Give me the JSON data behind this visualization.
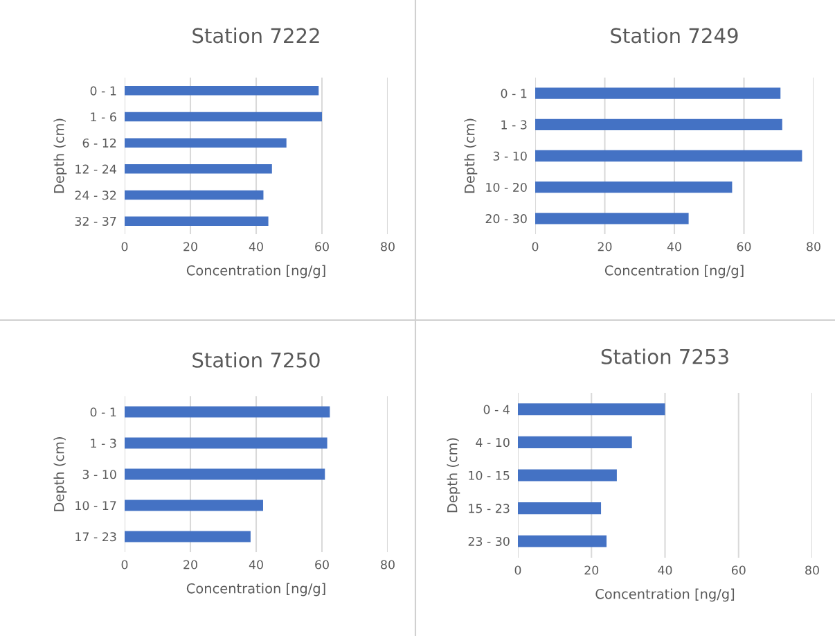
{
  "chart_data": [
    {
      "type": "bar",
      "orientation": "horizontal",
      "title": "Station 7222",
      "xlabel": "Concentration [ng/g]",
      "ylabel": "Depth (cm)",
      "categories": [
        "0 - 1",
        "1 - 6",
        "6 - 12",
        "12 - 24",
        "24 - 32",
        "32 - 37"
      ],
      "values": [
        59.0,
        60.0,
        49.2,
        44.8,
        42.2,
        43.7
      ],
      "color": "#4472c4",
      "xlim": [
        0,
        80
      ],
      "xticks": [
        0,
        20,
        40,
        60,
        80
      ],
      "grid": "x"
    },
    {
      "type": "bar",
      "orientation": "horizontal",
      "title": "Station 7249",
      "xlabel": "Concentration [ng/g]",
      "ylabel": "Depth (cm)",
      "categories": [
        "0 - 1",
        "1 - 3",
        "3 - 10",
        "10 - 20",
        "20 - 30"
      ],
      "values": [
        70.5,
        71.0,
        76.7,
        56.6,
        44.1
      ],
      "color": "#4472c4",
      "xlim": [
        0,
        80
      ],
      "xticks": [
        0,
        20,
        40,
        60,
        80
      ],
      "grid": "x"
    },
    {
      "type": "bar",
      "orientation": "horizontal",
      "title": "Station 7250",
      "xlabel": "Concentration [ng/g]",
      "ylabel": "Depth (cm)",
      "categories": [
        "0 - 1",
        "1 - 3",
        "3 - 10",
        "10 - 17",
        "17 - 23"
      ],
      "values": [
        62.4,
        61.6,
        60.9,
        42.1,
        38.3
      ],
      "color": "#4472c4",
      "xlim": [
        0,
        80
      ],
      "xticks": [
        0,
        20,
        40,
        60,
        80
      ],
      "grid": "x"
    },
    {
      "type": "bar",
      "orientation": "horizontal",
      "title": "Station 7253",
      "xlabel": "Concentration [ng/g]",
      "ylabel": "Depth (cm)",
      "categories": [
        "0 - 4",
        "4 - 10",
        "10 - 15",
        "15 - 23",
        "23 - 30"
      ],
      "values": [
        40.0,
        31.0,
        26.9,
        22.6,
        24.1
      ],
      "color": "#4472c4",
      "xlim": [
        0,
        80
      ],
      "xticks": [
        0,
        20,
        40,
        60,
        80
      ],
      "grid": "x"
    }
  ]
}
